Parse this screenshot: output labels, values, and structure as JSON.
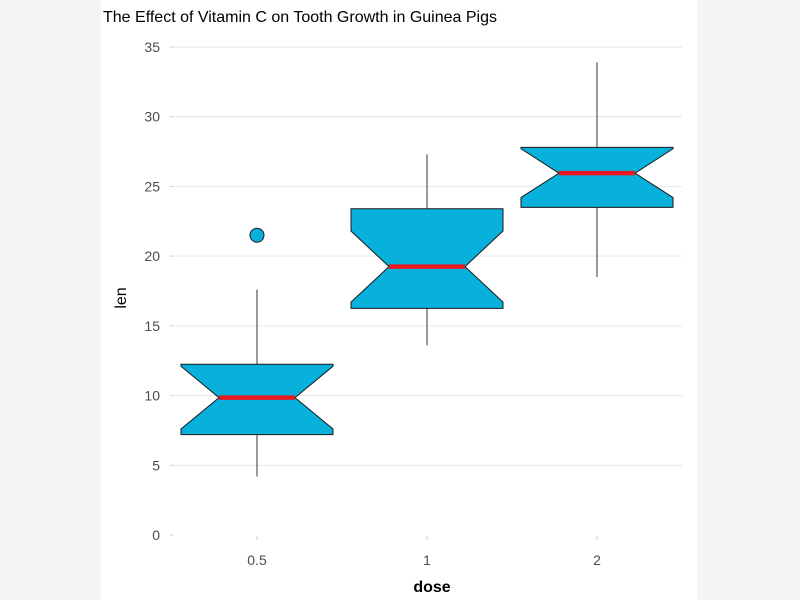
{
  "chart_data": {
    "type": "boxplot",
    "title": "The Effect of Vitamin C on Tooth Growth in Guinea Pigs",
    "xlabel": "dose",
    "ylabel": "len",
    "ylim": [
      0,
      35
    ],
    "yticks": [
      "0",
      "5",
      "10",
      "15",
      "20",
      "25",
      "30",
      "35"
    ],
    "categories": [
      "0.5",
      "1",
      "2"
    ],
    "notched": true,
    "grid": true,
    "box_color": "#08b0dc",
    "median_color": "#e8191f",
    "boxes": [
      {
        "category": "0.5",
        "whisker_low": 4.2,
        "q1": 7.2,
        "median": 9.85,
        "q3": 12.25,
        "whisker_high": 17.6,
        "notch_low": 7.6,
        "notch_high": 12.1,
        "outliers": [
          21.5
        ]
      },
      {
        "category": "1",
        "whisker_low": 13.6,
        "q1": 16.25,
        "median": 19.25,
        "q3": 23.4,
        "whisker_high": 27.3,
        "notch_low": 16.7,
        "notch_high": 21.8,
        "outliers": []
      },
      {
        "category": "2",
        "whisker_low": 18.5,
        "q1": 23.5,
        "median": 25.95,
        "q3": 27.8,
        "whisker_high": 33.9,
        "notch_low": 24.2,
        "notch_high": 27.7,
        "outliers": []
      }
    ]
  }
}
